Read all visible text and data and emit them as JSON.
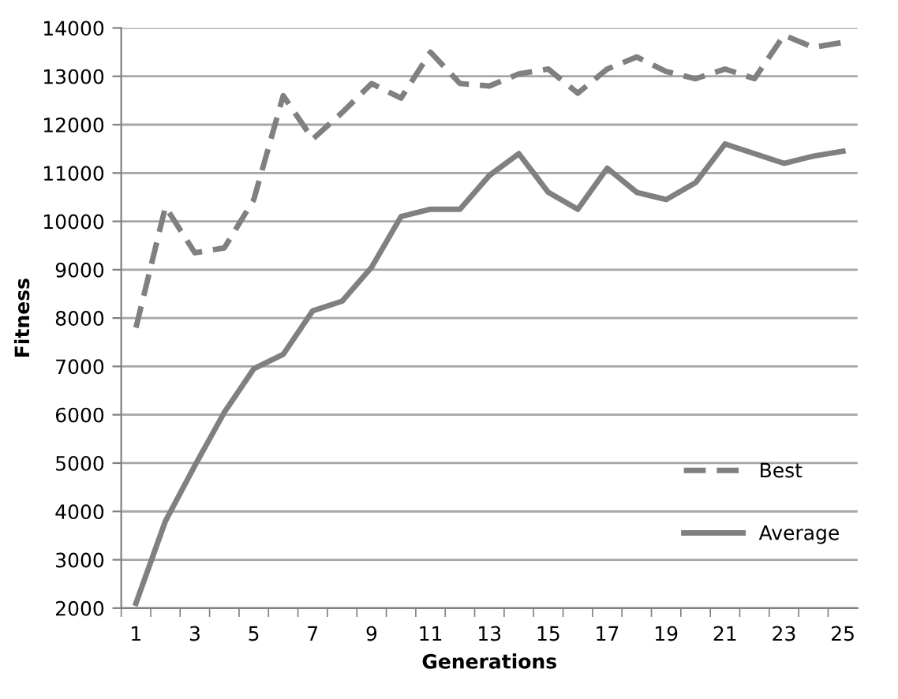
{
  "chart_data": {
    "type": "line",
    "xlabel": "Generations",
    "ylabel": "Fitness",
    "categories": [
      "1",
      null,
      "3",
      null,
      "5",
      null,
      "7",
      null,
      "9",
      null,
      "11",
      null,
      "13",
      null,
      "15",
      null,
      "17",
      null,
      "19",
      null,
      "21",
      null,
      "23",
      null,
      "25"
    ],
    "series": [
      {
        "name": "Best",
        "color": "#808080",
        "line_style": "dashed",
        "values": [
          7800,
          10300,
          9350,
          9450,
          10450,
          12600,
          11700,
          12250,
          12850,
          12550,
          13500,
          12850,
          12800,
          13050,
          13150,
          12650,
          13150,
          13400,
          13100,
          12950,
          13150,
          12950,
          13850,
          13600,
          13700
        ]
      },
      {
        "name": "Average",
        "color": "#808080",
        "line_style": "solid",
        "values": [
          2100,
          3800,
          4950,
          6050,
          6950,
          7250,
          8150,
          8350,
          9050,
          10100,
          10250,
          10250,
          10950,
          11400,
          10600,
          10250,
          11100,
          10600,
          10450,
          10800,
          11600,
          11400,
          11200,
          11350,
          11450
        ]
      }
    ],
    "ylim": [
      2000,
      14000
    ],
    "yticks": [
      2000,
      3000,
      4000,
      5000,
      6000,
      7000,
      8000,
      9000,
      10000,
      11000,
      12000,
      13000,
      14000
    ],
    "grid": "y",
    "legend": "bottom right",
    "marker": "none"
  }
}
